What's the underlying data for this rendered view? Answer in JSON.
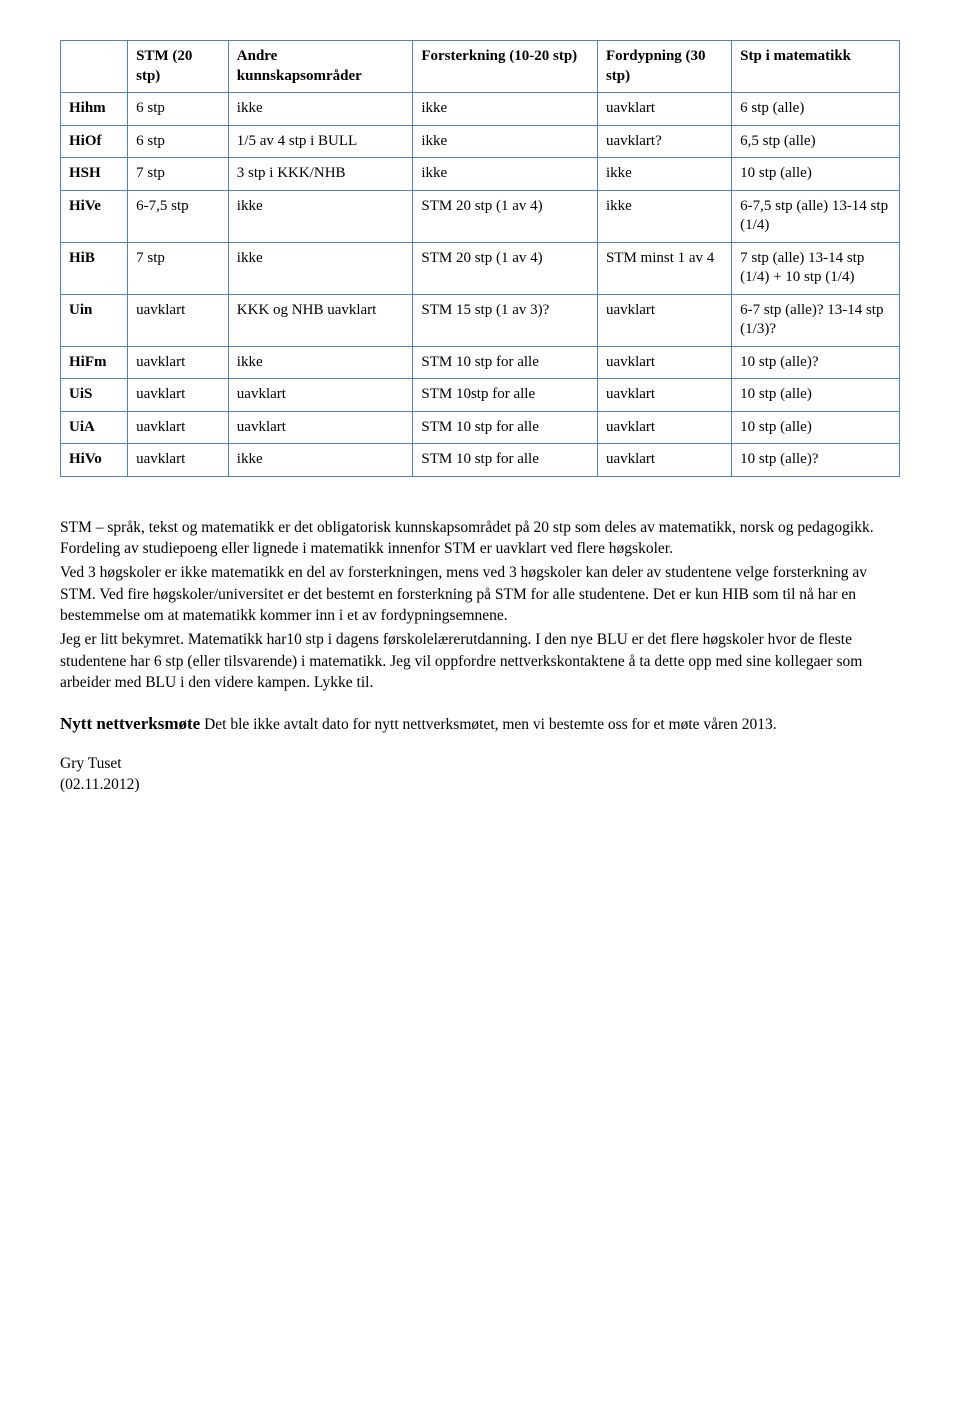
{
  "table": {
    "border_color": "#4f81bd",
    "header": [
      "",
      "STM (20 stp)",
      "Andre kunnskapsområder",
      "Forsterkning (10-20 stp)",
      "Fordypning (30 stp)",
      "Stp i matematikk"
    ],
    "rows": [
      [
        "Hihm",
        "6 stp",
        "ikke",
        "ikke",
        "uavklart",
        "6 stp (alle)"
      ],
      [
        "HiOf",
        "6 stp",
        "1/5 av 4 stp i BULL",
        "ikke",
        "uavklart?",
        "6,5 stp (alle)"
      ],
      [
        "HSH",
        "7 stp",
        "3 stp i KKK/NHB",
        "ikke",
        "ikke",
        "10 stp (alle)"
      ],
      [
        "HiVe",
        "6-7,5 stp",
        "ikke",
        "STM 20 stp (1 av 4)",
        "ikke",
        "6-7,5 stp (alle) 13-14 stp (1/4)"
      ],
      [
        "HiB",
        "7 stp",
        "ikke",
        "STM 20 stp (1 av 4)",
        "STM minst 1 av 4",
        "7 stp (alle) 13-14 stp (1/4) + 10 stp (1/4)"
      ],
      [
        "Uin",
        "uavklart",
        "KKK og NHB uavklart",
        "STM 15 stp (1 av 3)?",
        "uavklart",
        "6-7 stp (alle)? 13-14 stp (1/3)?"
      ],
      [
        "HiFm",
        "uavklart",
        "ikke",
        "STM 10 stp for alle",
        "uavklart",
        "10 stp (alle)?"
      ],
      [
        "UiS",
        "uavklart",
        "uavklart",
        "STM 10stp for alle",
        "uavklart",
        "10 stp (alle)"
      ],
      [
        "UiA",
        "uavklart",
        "uavklart",
        "STM 10 stp for alle",
        "uavklart",
        "10 stp (alle)"
      ],
      [
        "HiVo",
        "uavklart",
        "ikke",
        "STM 10 stp for alle",
        "uavklart",
        "10 stp (alle)?"
      ]
    ]
  },
  "paragraphs": {
    "p1": "STM – språk, tekst og matematikk er det obligatorisk kunnskapsområdet på 20 stp som deles av matematikk, norsk og pedagogikk. Fordeling av studiepoeng eller lignede i matematikk innenfor STM er uavklart ved flere høgskoler.",
    "p2": "Ved 3 høgskoler er ikke matematikk en del av forsterkningen, mens ved 3 høgskoler kan deler av studentene velge forsterkning av STM. Ved fire høgskoler/universitet er det bestemt en forsterkning på STM for alle studentene. Det er kun HIB som til nå har en bestemmelse om at matematikk kommer inn i et av fordypningsemnene.",
    "p3": "Jeg er litt bekymret. Matematikk har10 stp i dagens førskolelærerutdanning. I den nye BLU er det flere høgskoler hvor de fleste studentene har 6 stp (eller tilsvarende) i matematikk. Jeg vil oppfordre nettverkskontaktene å ta dette opp med sine kollegaer som arbeider med BLU i den videre kampen. Lykke til."
  },
  "meeting": {
    "heading_bold": "Nytt nettverksmøte",
    "heading_rest": " Det ble ikke avtalt dato for nytt nettverksmøtet, men vi bestemte oss for et møte våren 2013."
  },
  "signature": {
    "name": "Gry Tuset",
    "date": "(02.11.2012)"
  }
}
